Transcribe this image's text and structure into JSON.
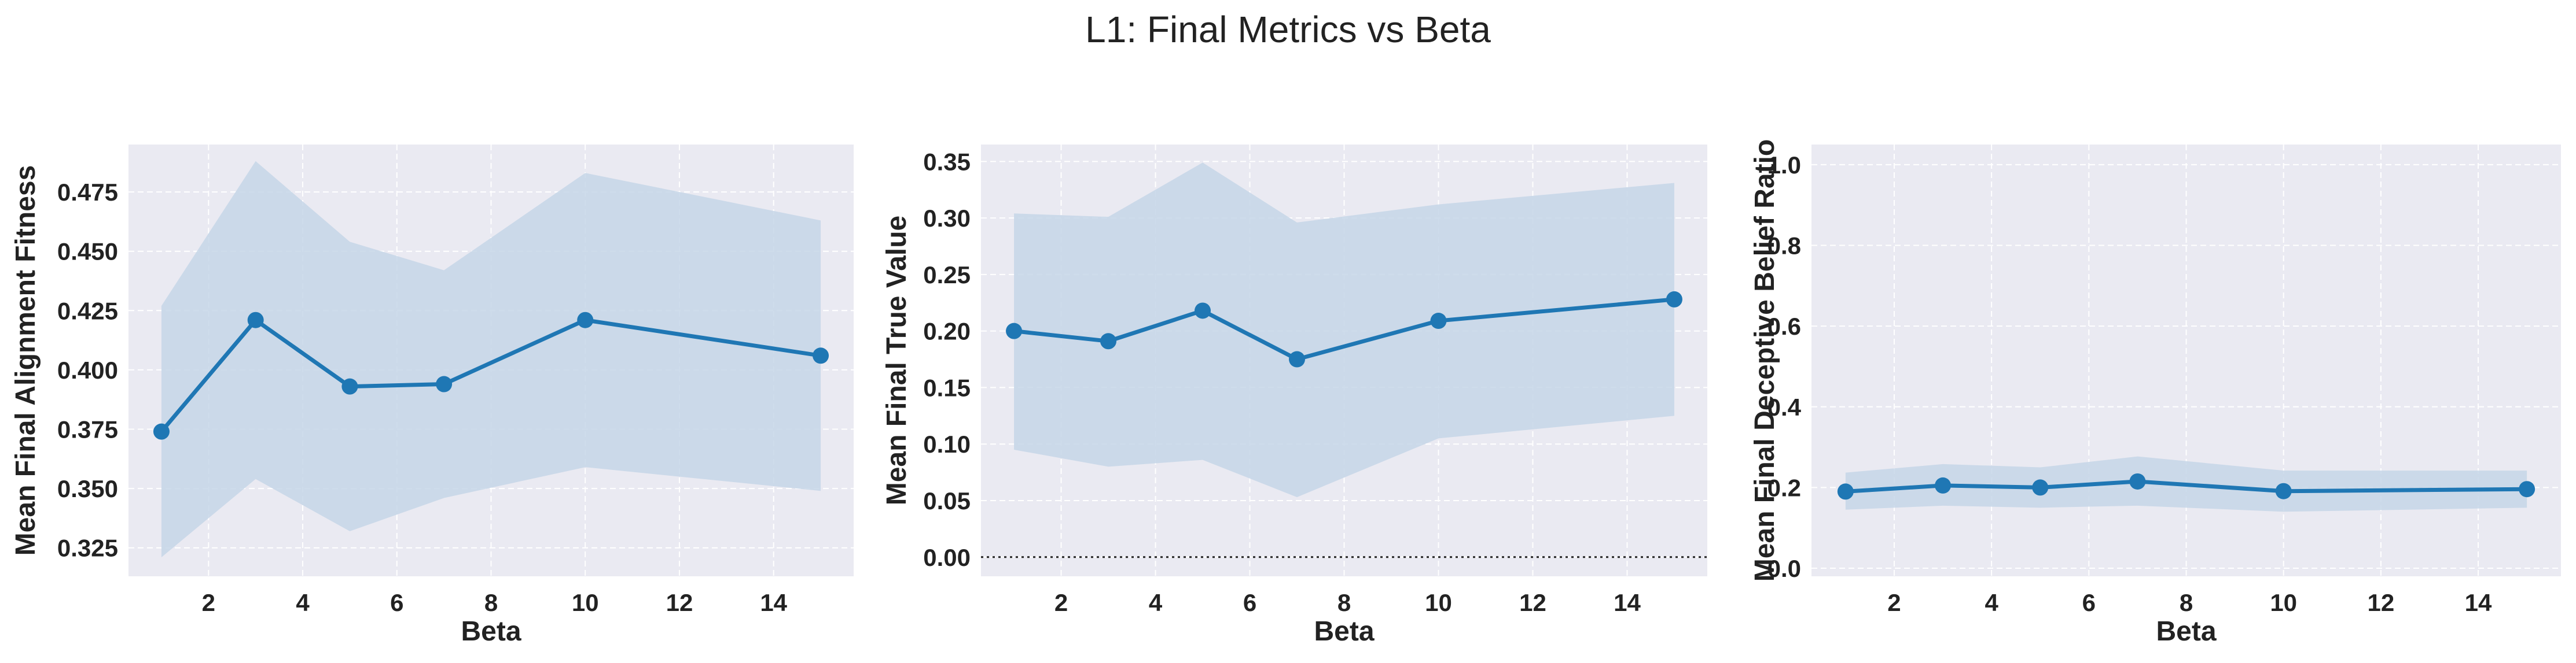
{
  "figure": {
    "title": "L1: Final Metrics vs Beta"
  },
  "colors": {
    "background": "#eaeaf2",
    "grid": "#ffffff",
    "line": "#1f77b4",
    "band": "#c6d6e8"
  },
  "chart_data": [
    {
      "type": "line",
      "title": "",
      "xlabel": "Beta",
      "ylabel": "Mean Final Alignment Fitness",
      "xlim": [
        0.3,
        15.7
      ],
      "ylim": [
        0.313,
        0.495
      ],
      "xticks": [
        "2",
        "4",
        "6",
        "8",
        "10",
        "12",
        "14"
      ],
      "yticks": [
        "0.325",
        "0.350",
        "0.375",
        "0.400",
        "0.425",
        "0.450",
        "0.475"
      ],
      "grid": true,
      "zero_line": false,
      "x": [
        1,
        3,
        5,
        7,
        10,
        15
      ],
      "series": [
        {
          "values": [
            0.374,
            0.421,
            0.393,
            0.394,
            0.421,
            0.406
          ],
          "lower": [
            0.321,
            0.354,
            0.332,
            0.346,
            0.359,
            0.349
          ],
          "upper": [
            0.427,
            0.488,
            0.454,
            0.442,
            0.483,
            0.463
          ]
        }
      ]
    },
    {
      "type": "line",
      "title": "",
      "xlabel": "Beta",
      "ylabel": "Mean Final True Value",
      "xlim": [
        0.3,
        15.7
      ],
      "ylim": [
        -0.017,
        0.365
      ],
      "xticks": [
        "2",
        "4",
        "6",
        "8",
        "10",
        "12",
        "14"
      ],
      "yticks": [
        "0.00",
        "0.05",
        "0.10",
        "0.15",
        "0.20",
        "0.25",
        "0.30",
        "0.35"
      ],
      "grid": true,
      "zero_line": true,
      "x": [
        1,
        3,
        5,
        7,
        10,
        15
      ],
      "series": [
        {
          "values": [
            0.2,
            0.191,
            0.218,
            0.175,
            0.209,
            0.228
          ],
          "lower": [
            0.095,
            0.08,
            0.086,
            0.053,
            0.105,
            0.125
          ],
          "upper": [
            0.304,
            0.301,
            0.349,
            0.296,
            0.312,
            0.331
          ]
        }
      ]
    },
    {
      "type": "line",
      "title": "",
      "xlabel": "Beta",
      "ylabel": "Mean Final Deceptive Belief Ratio",
      "xlim": [
        0.3,
        15.7
      ],
      "ylim": [
        -0.02,
        1.05
      ],
      "xticks": [
        "2",
        "4",
        "6",
        "8",
        "10",
        "12",
        "14"
      ],
      "yticks": [
        "0.0",
        "0.2",
        "0.4",
        "0.6",
        "0.8",
        "1.0"
      ],
      "grid": true,
      "zero_line": false,
      "x": [
        1,
        3,
        5,
        7,
        10,
        15
      ],
      "series": [
        {
          "values": [
            0.19,
            0.205,
            0.2,
            0.215,
            0.191,
            0.196
          ],
          "lower": [
            0.145,
            0.155,
            0.15,
            0.155,
            0.14,
            0.15
          ],
          "upper": [
            0.237,
            0.258,
            0.25,
            0.277,
            0.242,
            0.242
          ]
        }
      ]
    }
  ]
}
